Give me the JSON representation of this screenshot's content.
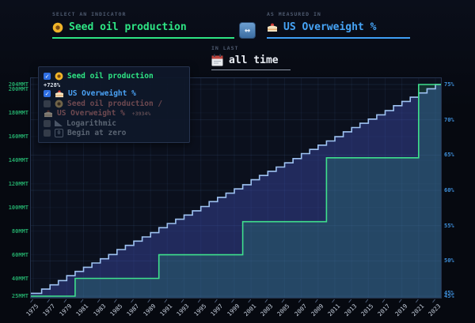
{
  "header": {
    "indicator_label": "SELECT AN INDICATOR",
    "indicator_value": "Seed oil production",
    "swap_glyph": "↔",
    "measure_label": "AS MEASURED IN",
    "measure_value": "US Overweight %",
    "range_label": "IN LAST",
    "range_value": "all time"
  },
  "colors": {
    "accent_green": "#2ee584",
    "accent_blue": "#46a4f6",
    "green_line": "#3fe08d",
    "blue_line": "#9fc3f2",
    "background": "#060910"
  },
  "legend": {
    "items": [
      {
        "label": "Seed oil production",
        "change": "+728%",
        "checked": true,
        "icon": "sunflower-icon"
      },
      {
        "label": "US Overweight %",
        "checked": true,
        "icon": "cake-icon"
      },
      {
        "label": "Seed oil production /",
        "checked": false,
        "icon": "sunflower-icon"
      },
      {
        "label": "US Overweight %",
        "change": "+3934%",
        "checked": false,
        "icon": "cake-icon"
      },
      {
        "label": "Logarithmic",
        "checked": false,
        "icon": "triangle-ruler-icon"
      },
      {
        "label": "Begin at zero",
        "checked": false,
        "icon": "zero-icon"
      }
    ]
  },
  "chart_data": {
    "type": "line",
    "step": true,
    "grid": true,
    "legend_position": "top-left",
    "x_range": [
      1975,
      2023
    ],
    "x_ticks": [
      1975,
      1977,
      1979,
      1981,
      1983,
      1985,
      1987,
      1989,
      1991,
      1993,
      1995,
      1997,
      1999,
      2001,
      2003,
      2005,
      2007,
      2009,
      2011,
      2013,
      2015,
      2017,
      2019,
      2021,
      2023
    ],
    "left_axis": {
      "unit": "MMT",
      "min": 25,
      "max": 204,
      "grid_values": [
        40,
        60,
        80,
        100,
        120,
        140,
        160,
        180,
        200
      ],
      "ticks": [
        {
          "v": 204,
          "label": "204MMT"
        },
        {
          "v": 200,
          "label": "200MMT"
        },
        {
          "v": 180,
          "label": "180MMT"
        },
        {
          "v": 160,
          "label": "160MMT"
        },
        {
          "v": 140,
          "label": "140MMT"
        },
        {
          "v": 120,
          "label": "120MMT"
        },
        {
          "v": 100,
          "label": "100MMT"
        },
        {
          "v": 80,
          "label": "80MMT"
        },
        {
          "v": 60,
          "label": "60MMT"
        },
        {
          "v": 40,
          "label": "40MMT"
        },
        {
          "v": 25,
          "label": "25MMT"
        }
      ]
    },
    "right_axis": {
      "unit": "%",
      "min": 45,
      "max": 75,
      "grid_values": [
        45,
        50,
        55,
        60,
        65,
        70,
        75
      ],
      "ticks": [
        {
          "v": 75,
          "label": "75%"
        },
        {
          "v": 70,
          "label": "70%"
        },
        {
          "v": 65,
          "label": "65%"
        },
        {
          "v": 60,
          "label": "60%"
        },
        {
          "v": 55,
          "label": "55%"
        },
        {
          "v": 50,
          "label": "50%"
        },
        {
          "v": 45.4,
          "label": "45%"
        },
        {
          "v": 45,
          "label": "45%"
        }
      ]
    },
    "series": [
      {
        "name": "US Overweight %",
        "axis": "right",
        "change": null,
        "color": "#9fc3f2",
        "fill": "rgba(64,78,180,0.42)",
        "x": [
          1975,
          1976,
          1977,
          1978,
          1979,
          1980,
          1981,
          1982,
          1983,
          1984,
          1985,
          1986,
          1987,
          1988,
          1989,
          1990,
          1991,
          1992,
          1993,
          1994,
          1995,
          1996,
          1997,
          1998,
          1999,
          2000,
          2001,
          2002,
          2003,
          2004,
          2005,
          2006,
          2007,
          2008,
          2009,
          2010,
          2011,
          2012,
          2013,
          2014,
          2015,
          2016,
          2017,
          2018,
          2019,
          2020,
          2021,
          2022,
          2023
        ],
        "y": [
          45.4,
          46.0,
          46.6,
          47.2,
          47.9,
          48.5,
          49.1,
          49.7,
          50.3,
          50.9,
          51.6,
          52.2,
          52.8,
          53.4,
          54.0,
          54.7,
          55.3,
          55.9,
          56.5,
          57.1,
          57.7,
          58.4,
          59.0,
          59.6,
          60.2,
          60.8,
          61.5,
          62.1,
          62.7,
          63.3,
          63.9,
          64.5,
          65.2,
          65.8,
          66.4,
          67.0,
          67.6,
          68.3,
          68.9,
          69.5,
          70.1,
          70.7,
          71.3,
          72.0,
          72.6,
          73.2,
          73.8,
          74.4,
          75.0
        ]
      },
      {
        "name": "Seed oil production",
        "axis": "left",
        "change": "+728%",
        "color": "#3fe08d",
        "fill": "rgba(62,224,150,0.16)",
        "x": [
          1975,
          1980,
          1990,
          2000,
          2010,
          2021
        ],
        "y": [
          25,
          40,
          60,
          88,
          142,
          204
        ]
      }
    ]
  }
}
